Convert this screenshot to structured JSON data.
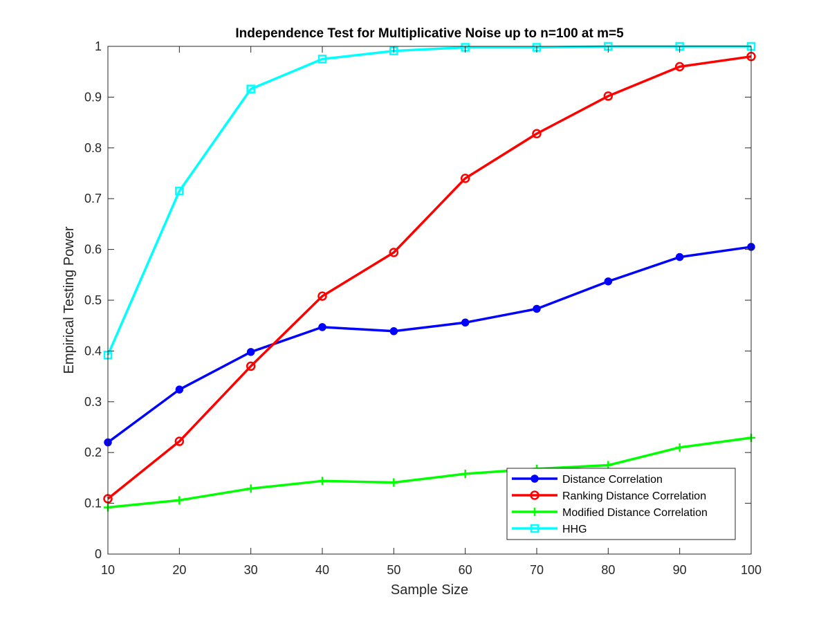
{
  "chart_data": {
    "type": "line",
    "title": "Independence Test for Multiplicative Noise up to n=100 at m=5",
    "xlabel": "Sample Size",
    "ylabel": "Empirical Testing Power",
    "xlim": [
      10,
      100
    ],
    "ylim": [
      0,
      1
    ],
    "xticks": [
      "10",
      "20",
      "30",
      "40",
      "50",
      "60",
      "70",
      "80",
      "90",
      "100"
    ],
    "yticks": [
      "0",
      "0.1",
      "0.2",
      "0.3",
      "0.4",
      "0.5",
      "0.6",
      "0.7",
      "0.8",
      "0.9",
      "1"
    ],
    "grid": false,
    "legend_position": "bottom-right",
    "x": [
      10,
      20,
      30,
      40,
      50,
      60,
      70,
      80,
      90,
      100
    ],
    "series": [
      {
        "name": "Distance Correlation",
        "color": "#0000ff",
        "marker": "filled-circle",
        "values": [
          0.22,
          0.324,
          0.398,
          0.447,
          0.439,
          0.456,
          0.483,
          0.537,
          0.585,
          0.605
        ]
      },
      {
        "name": "Ranking Distance Correlation",
        "color": "#ff0000",
        "marker": "open-circle",
        "values": [
          0.109,
          0.222,
          0.37,
          0.508,
          0.594,
          0.74,
          0.828,
          0.902,
          0.96,
          0.98
        ]
      },
      {
        "name": "Modified Distance Correlation",
        "color": "#00ff00",
        "marker": "plus",
        "values": [
          0.092,
          0.106,
          0.129,
          0.144,
          0.141,
          0.158,
          0.168,
          0.175,
          0.21,
          0.229
        ]
      },
      {
        "name": "HHG",
        "color": "#00ffff",
        "marker": "square",
        "values": [
          0.392,
          0.715,
          0.916,
          0.975,
          0.991,
          0.998,
          0.998,
          1.0,
          1.0,
          1.0
        ]
      }
    ]
  }
}
